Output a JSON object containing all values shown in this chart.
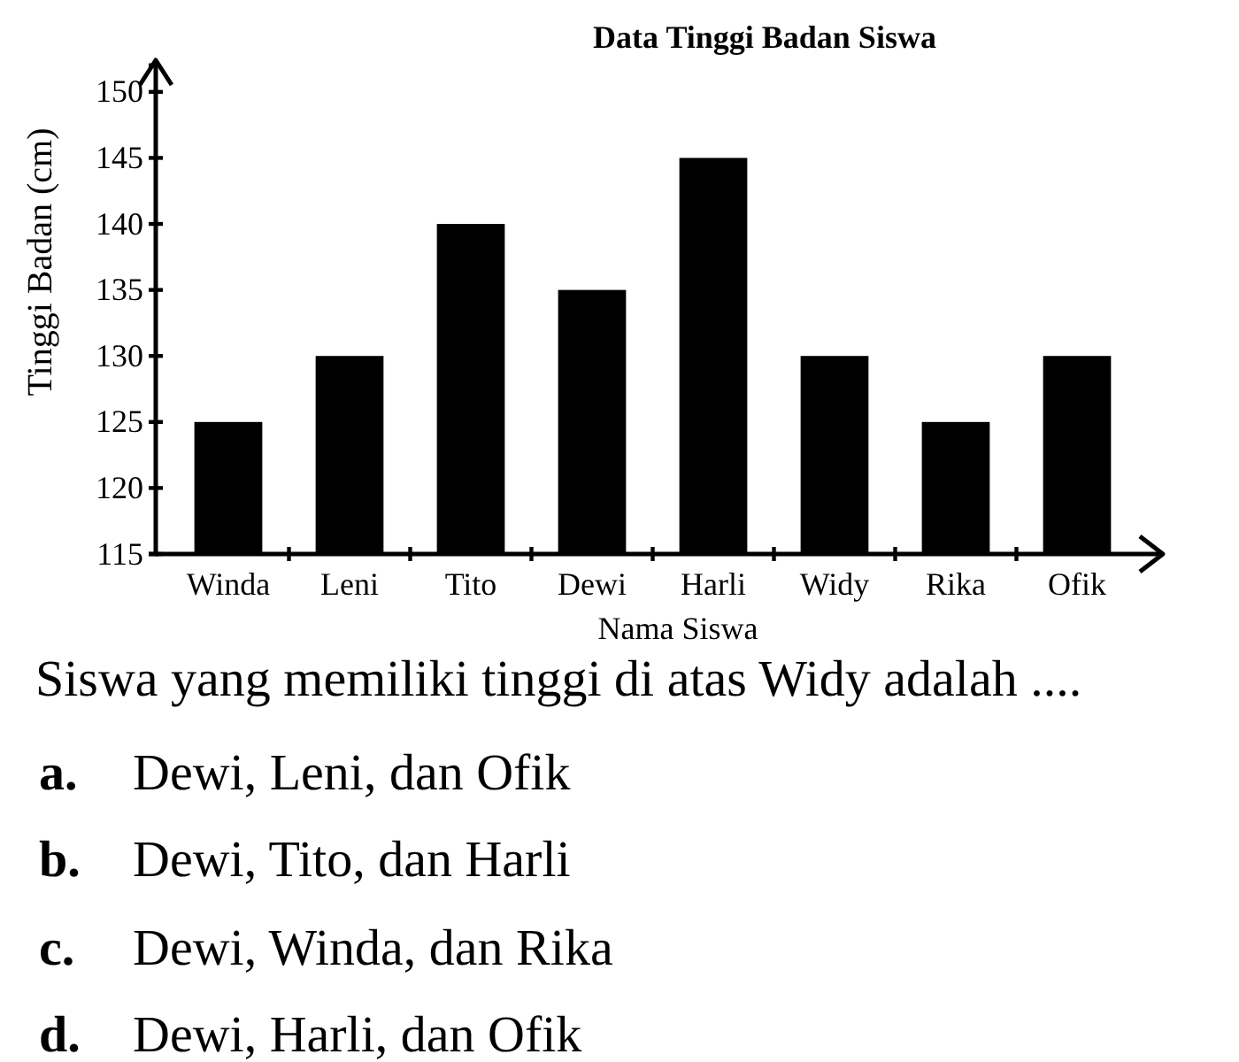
{
  "chart_data": {
    "type": "bar",
    "title": "Data Tinggi Badan Siswa",
    "xlabel": "Nama Siswa",
    "ylabel": "Tinggi Badan (cm)",
    "categories": [
      "Winda",
      "Leni",
      "Tito",
      "Dewi",
      "Harli",
      "Widy",
      "Rika",
      "Ofik"
    ],
    "values": [
      125,
      130,
      140,
      135,
      145,
      130,
      125,
      130
    ],
    "color": "#000000",
    "ylim": [
      115,
      152
    ],
    "yticks": [
      115,
      120,
      125,
      130,
      135,
      140,
      145,
      150
    ],
    "annotations": [
      "Siswa yang memiliki tinggi di atas Widy adalah ....",
      "a. Dewi, Leni, dan Ofik",
      "b. Dewi, Tito, dan Harli",
      "c. Dewi, Winda, dan Rika",
      "d. Dewi, Harli, dan Ofik"
    ]
  }
}
